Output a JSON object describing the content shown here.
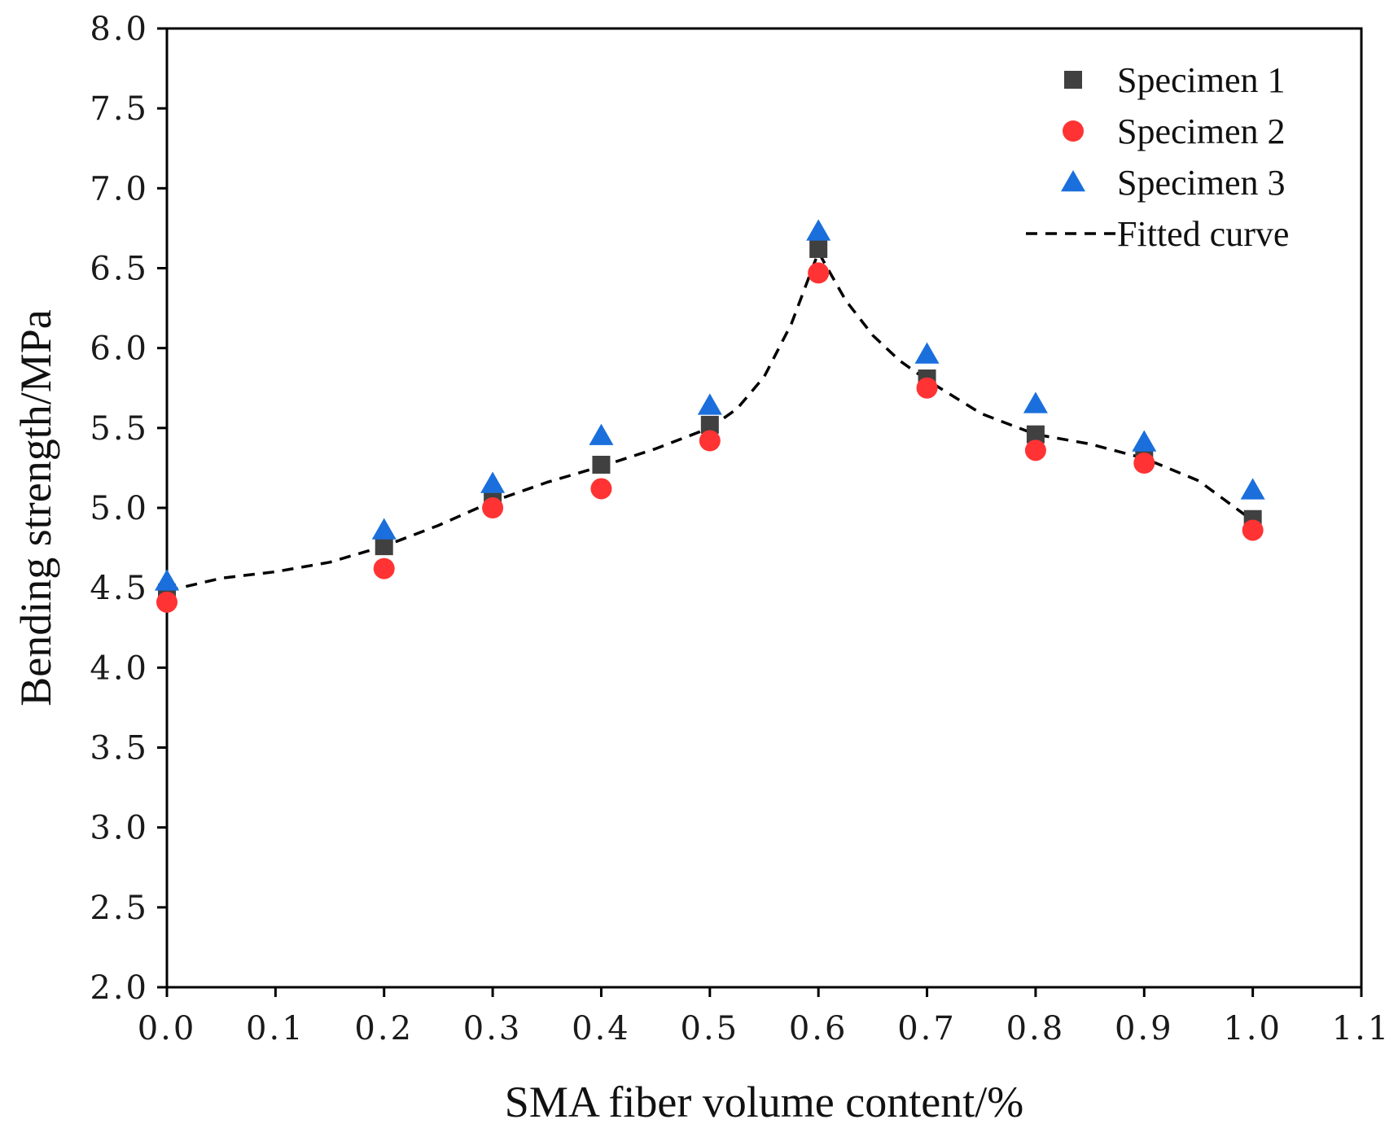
{
  "chart_data": {
    "type": "scatter",
    "xlabel": "SMA fiber volume content/%",
    "ylabel": "Bending strength/MPa",
    "xlim": [
      0.0,
      1.1
    ],
    "ylim": [
      2.0,
      8.0
    ],
    "xticks": [
      "0.0",
      "0.1",
      "0.2",
      "0.3",
      "0.4",
      "0.5",
      "0.6",
      "0.7",
      "0.8",
      "0.9",
      "1.0",
      "1.1"
    ],
    "yticks": [
      "2.0",
      "2.5",
      "3.0",
      "3.5",
      "4.0",
      "4.5",
      "5.0",
      "5.5",
      "6.0",
      "6.5",
      "7.0",
      "7.5",
      "8.0"
    ],
    "grid": false,
    "legend_position": "top-right",
    "series": [
      {
        "name": "Specimen 1",
        "marker": "square",
        "color": "#404040",
        "x": [
          0.0,
          0.2,
          0.3,
          0.4,
          0.5,
          0.6,
          0.7,
          0.8,
          0.9,
          1.0
        ],
        "y": [
          4.47,
          4.76,
          5.06,
          5.27,
          5.52,
          6.62,
          5.81,
          5.46,
          5.3,
          4.93
        ]
      },
      {
        "name": "Specimen 2",
        "marker": "circle",
        "color": "#ff3333",
        "x": [
          0.0,
          0.2,
          0.3,
          0.4,
          0.5,
          0.6,
          0.7,
          0.8,
          0.9,
          1.0
        ],
        "y": [
          4.41,
          4.62,
          5.0,
          5.12,
          5.42,
          6.47,
          5.75,
          5.36,
          5.28,
          4.86
        ]
      },
      {
        "name": "Specimen 3",
        "marker": "triangle",
        "color": "#1a6fdc",
        "x": [
          0.0,
          0.2,
          0.3,
          0.4,
          0.5,
          0.6,
          0.7,
          0.8,
          0.9,
          1.0
        ],
        "y": [
          4.54,
          4.86,
          5.15,
          5.45,
          5.64,
          6.73,
          5.96,
          5.65,
          5.41,
          5.11
        ]
      }
    ],
    "fitted_curve": {
      "name": "Fitted curve",
      "style": "dashed",
      "color": "#000000",
      "x": [
        0.0,
        0.05,
        0.1,
        0.15,
        0.2,
        0.25,
        0.3,
        0.35,
        0.4,
        0.45,
        0.5,
        0.525,
        0.55,
        0.575,
        0.6,
        0.625,
        0.65,
        0.675,
        0.7,
        0.75,
        0.8,
        0.85,
        0.9,
        0.95,
        1.0
      ],
      "y": [
        4.48,
        4.56,
        4.6,
        4.66,
        4.76,
        4.89,
        5.04,
        5.16,
        5.26,
        5.37,
        5.5,
        5.62,
        5.82,
        6.15,
        6.6,
        6.3,
        6.08,
        5.92,
        5.8,
        5.59,
        5.46,
        5.4,
        5.31,
        5.17,
        4.92
      ]
    }
  }
}
